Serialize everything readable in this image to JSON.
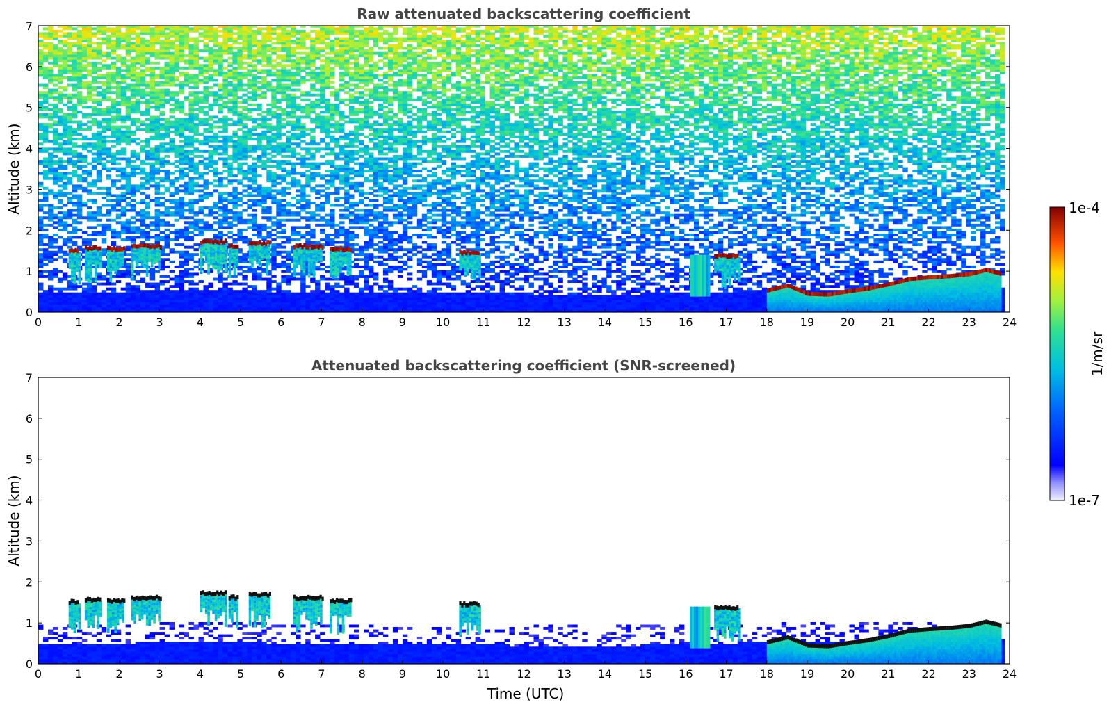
{
  "chart_data": [
    {
      "type": "heatmap",
      "title": "Raw attenuated backscattering coefficient",
      "xlabel": "",
      "ylabel": "Altitude (km)",
      "xlim": [
        0,
        24
      ],
      "ylim": [
        0,
        7
      ],
      "xticks": [
        "0",
        "1",
        "2",
        "3",
        "4",
        "5",
        "6",
        "7",
        "8",
        "9",
        "10",
        "11",
        "12",
        "13",
        "14",
        "15",
        "16",
        "17",
        "18",
        "19",
        "20",
        "21",
        "22",
        "23",
        "24"
      ],
      "yticks": [
        "0",
        "1",
        "2",
        "3",
        "4",
        "5",
        "6",
        "7"
      ],
      "screened": false,
      "features": {
        "boundary_layer": [
          [
            0,
            0.45
          ],
          [
            4,
            0.5
          ],
          [
            8,
            0.45
          ],
          [
            14,
            0.4
          ],
          [
            16,
            0.45
          ],
          [
            18,
            0.5
          ],
          [
            24,
            0.5
          ]
        ],
        "cloud_bases": [
          {
            "t0": 0.75,
            "t1": 1.0,
            "alt": 1.47
          },
          {
            "t0": 1.15,
            "t1": 1.55,
            "alt": 1.52
          },
          {
            "t0": 1.7,
            "t1": 2.1,
            "alt": 1.5
          },
          {
            "t0": 2.3,
            "t1": 3.0,
            "alt": 1.57
          },
          {
            "t0": 4.0,
            "t1": 4.6,
            "alt": 1.68
          },
          {
            "t0": 4.7,
            "t1": 4.9,
            "alt": 1.58
          },
          {
            "t0": 5.2,
            "t1": 5.7,
            "alt": 1.65
          },
          {
            "t0": 6.3,
            "t1": 7.0,
            "alt": 1.57
          },
          {
            "t0": 7.2,
            "t1": 7.7,
            "alt": 1.5
          },
          {
            "t0": 10.4,
            "t1": 10.9,
            "alt": 1.42
          },
          {
            "t0": 16.7,
            "t1": 17.3,
            "alt": 1.33
          }
        ],
        "rising_cloud_top": [
          [
            18.0,
            0.5
          ],
          [
            18.5,
            0.62
          ],
          [
            19.0,
            0.42
          ],
          [
            19.5,
            0.4
          ],
          [
            20.0,
            0.48
          ],
          [
            20.5,
            0.55
          ],
          [
            21.0,
            0.65
          ],
          [
            21.5,
            0.78
          ],
          [
            22.0,
            0.82
          ],
          [
            22.5,
            0.85
          ],
          [
            23.0,
            0.9
          ],
          [
            23.4,
            1.0
          ],
          [
            23.8,
            0.9
          ]
        ]
      }
    },
    {
      "type": "heatmap",
      "title": "Attenuated backscattering coefficient (SNR-screened)",
      "xlabel": "Time (UTC)",
      "ylabel": "Altitude (km)",
      "xlim": [
        0,
        24
      ],
      "ylim": [
        0,
        7
      ],
      "xticks": [
        "0",
        "1",
        "2",
        "3",
        "4",
        "5",
        "6",
        "7",
        "8",
        "9",
        "10",
        "11",
        "12",
        "13",
        "14",
        "15",
        "16",
        "17",
        "18",
        "19",
        "20",
        "21",
        "22",
        "23",
        "24"
      ],
      "yticks": [
        "0",
        "1",
        "2",
        "3",
        "4",
        "5",
        "6",
        "7"
      ],
      "screened": true
    }
  ],
  "colorbar": {
    "min_label": "1e-7",
    "max_label": "1e-4",
    "unit_label": "1/m/sr",
    "scale": "log",
    "colormap": "jet"
  },
  "colors": {
    "text": "#000000",
    "title": "#444444"
  }
}
